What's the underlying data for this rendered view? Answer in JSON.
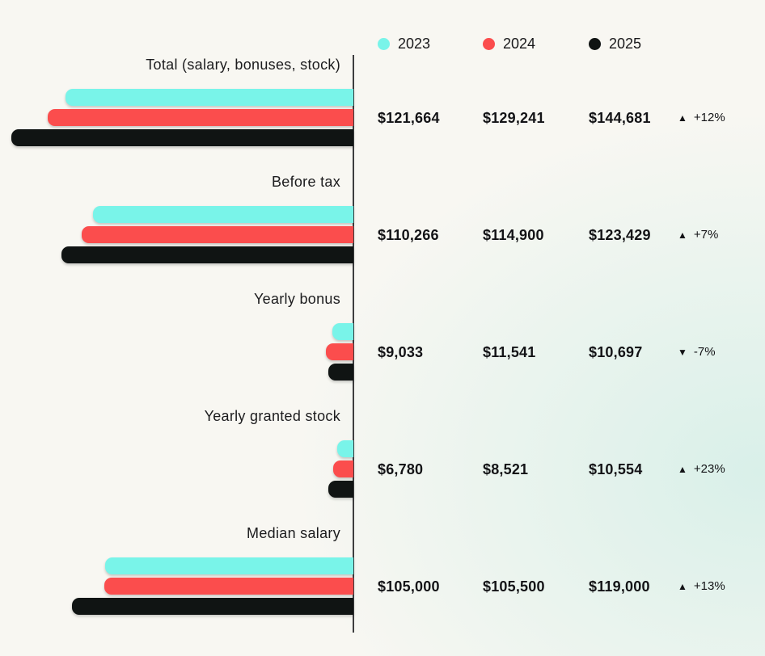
{
  "legend": {
    "items": [
      {
        "label": "2023",
        "color": "#79f4e9"
      },
      {
        "label": "2024",
        "color": "#fb4d4d"
      },
      {
        "label": "2025",
        "color": "#101413"
      }
    ]
  },
  "chart_data": {
    "type": "bar",
    "orientation": "horizontal",
    "title": "",
    "categories": [
      "Total (salary, bonuses, stock)",
      "Before tax",
      "Yearly bonus",
      "Yearly granted stock",
      "Median salary"
    ],
    "series": [
      {
        "name": "2023",
        "color": "#79f4e9",
        "values": [
          121664,
          110266,
          9033,
          6780,
          105000
        ]
      },
      {
        "name": "2024",
        "color": "#fb4d4d",
        "values": [
          129241,
          114900,
          11541,
          8521,
          105500
        ]
      },
      {
        "name": "2025",
        "color": "#101413",
        "values": [
          144681,
          123429,
          10697,
          10554,
          119000
        ]
      }
    ],
    "changes_year_over_year": [
      "+12%",
      "+7%",
      "-7%",
      "+23%",
      "+13%"
    ],
    "legend_position": "top-right",
    "value_axis_hidden": true,
    "grid": false
  },
  "groups": [
    {
      "label": "Total (salary, bonuses, stock)",
      "values": [
        "$121,664",
        "$129,241",
        "$144,681"
      ],
      "change": {
        "arrow": "▲",
        "text": "+12%",
        "direction": "up"
      }
    },
    {
      "label": "Before tax",
      "values": [
        "$110,266",
        "$114,900",
        "$123,429"
      ],
      "change": {
        "arrow": "▲",
        "text": "+7%",
        "direction": "up"
      }
    },
    {
      "label": "Yearly bonus",
      "values": [
        "$9,033",
        "$11,541",
        "$10,697"
      ],
      "change": {
        "arrow": "▼",
        "text": "-7%",
        "direction": "down"
      }
    },
    {
      "label": "Yearly granted stock",
      "values": [
        "$6,780",
        "$8,521",
        "$10,554"
      ],
      "change": {
        "arrow": "▲",
        "text": "+23%",
        "direction": "up"
      }
    },
    {
      "label": "Median salary",
      "values": [
        "$105,000",
        "$105,500",
        "$119,000"
      ],
      "change": {
        "arrow": "▲",
        "text": "+13%",
        "direction": "up"
      }
    }
  ]
}
